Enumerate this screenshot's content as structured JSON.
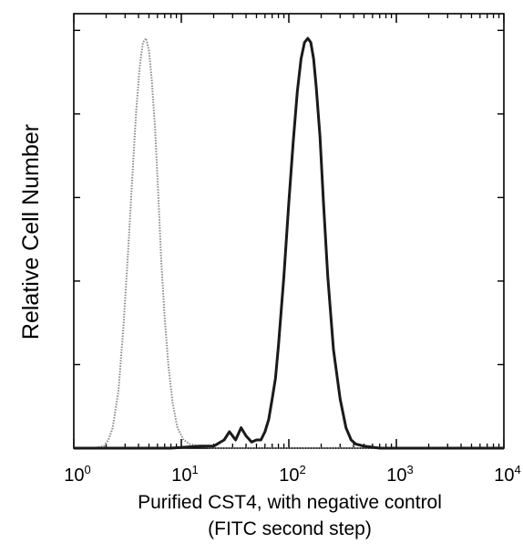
{
  "chart_data": {
    "type": "line",
    "title": "",
    "ylabel": "Relative Cell Number",
    "xlabel_line1": "Purified CST4, with negative control",
    "xlabel_line2": "(FITC second step)",
    "x_scale": "log",
    "xlim": [
      1,
      10000
    ],
    "ylim": [
      0,
      100
    ],
    "x_tick_labels": [
      {
        "base": "10",
        "exp": "0",
        "value": 1
      },
      {
        "base": "10",
        "exp": "1",
        "value": 10
      },
      {
        "base": "10",
        "exp": "2",
        "value": 100
      },
      {
        "base": "10",
        "exp": "3",
        "value": 1000
      },
      {
        "base": "10",
        "exp": "4",
        "value": 10000
      }
    ],
    "grid": false,
    "legend": "none",
    "series": [
      {
        "style": "dotted-gray",
        "color": "#8a8a8a",
        "x": [
          1.0,
          1.5,
          1.9,
          2.1,
          2.3,
          2.6,
          2.9,
          3.2,
          3.5,
          3.8,
          4.1,
          4.4,
          4.7,
          5.0,
          5.3,
          5.7,
          6.1,
          6.5,
          7.0,
          7.6,
          8.3,
          9.2,
          10.5,
          12,
          15,
          20,
          30,
          50,
          100,
          1000,
          10000
        ],
        "y": [
          0,
          0,
          0.5,
          2,
          5,
          14,
          30,
          48,
          66,
          82,
          93,
          99,
          100,
          97,
          90,
          78,
          62,
          46,
          32,
          20,
          11,
          5,
          2,
          1,
          0.5,
          0,
          0,
          0,
          0,
          0,
          0
        ]
      },
      {
        "style": "solid-black",
        "color": "#1a1a1a",
        "x": [
          1.0,
          3,
          8,
          15,
          20,
          25,
          28,
          32,
          36,
          40,
          45,
          50,
          55,
          60,
          65,
          70,
          75,
          80,
          90,
          100,
          110,
          120,
          130,
          140,
          150,
          160,
          170,
          180,
          195,
          210,
          230,
          260,
          300,
          340,
          380,
          420,
          500,
          700,
          1000,
          10000
        ],
        "y": [
          0,
          0,
          0,
          0.5,
          0.5,
          2,
          4,
          2,
          5,
          3,
          1.5,
          2,
          2,
          4,
          7,
          12,
          17,
          25,
          42,
          60,
          75,
          87,
          95,
          99,
          100,
          99,
          95,
          88,
          76,
          60,
          42,
          24,
          12,
          5,
          2,
          1,
          0.5,
          0,
          0,
          0
        ]
      }
    ]
  }
}
